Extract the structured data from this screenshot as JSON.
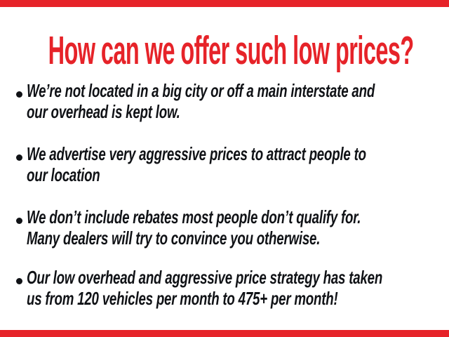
{
  "theme": {
    "background": "#ffffff",
    "accent_red": "#e62329",
    "text_color": "#101216",
    "top_bar_color": "#e62329",
    "bottom_bar_color": "#e62329"
  },
  "header": {
    "title": "How can we offer such low prices?"
  },
  "bullets": [
    "We’re not located in a big city or off a main interstate and\nour overhead is kept low.",
    "We advertise very aggressive prices to attract people to\nour location",
    "We don’t include rebates most people don’t qualify for.\nMany dealers will try to convince you otherwise.",
    "Our low overhead and aggressive price strategy has taken\nus from 120 vehicles per month to 475+ per month!"
  ]
}
